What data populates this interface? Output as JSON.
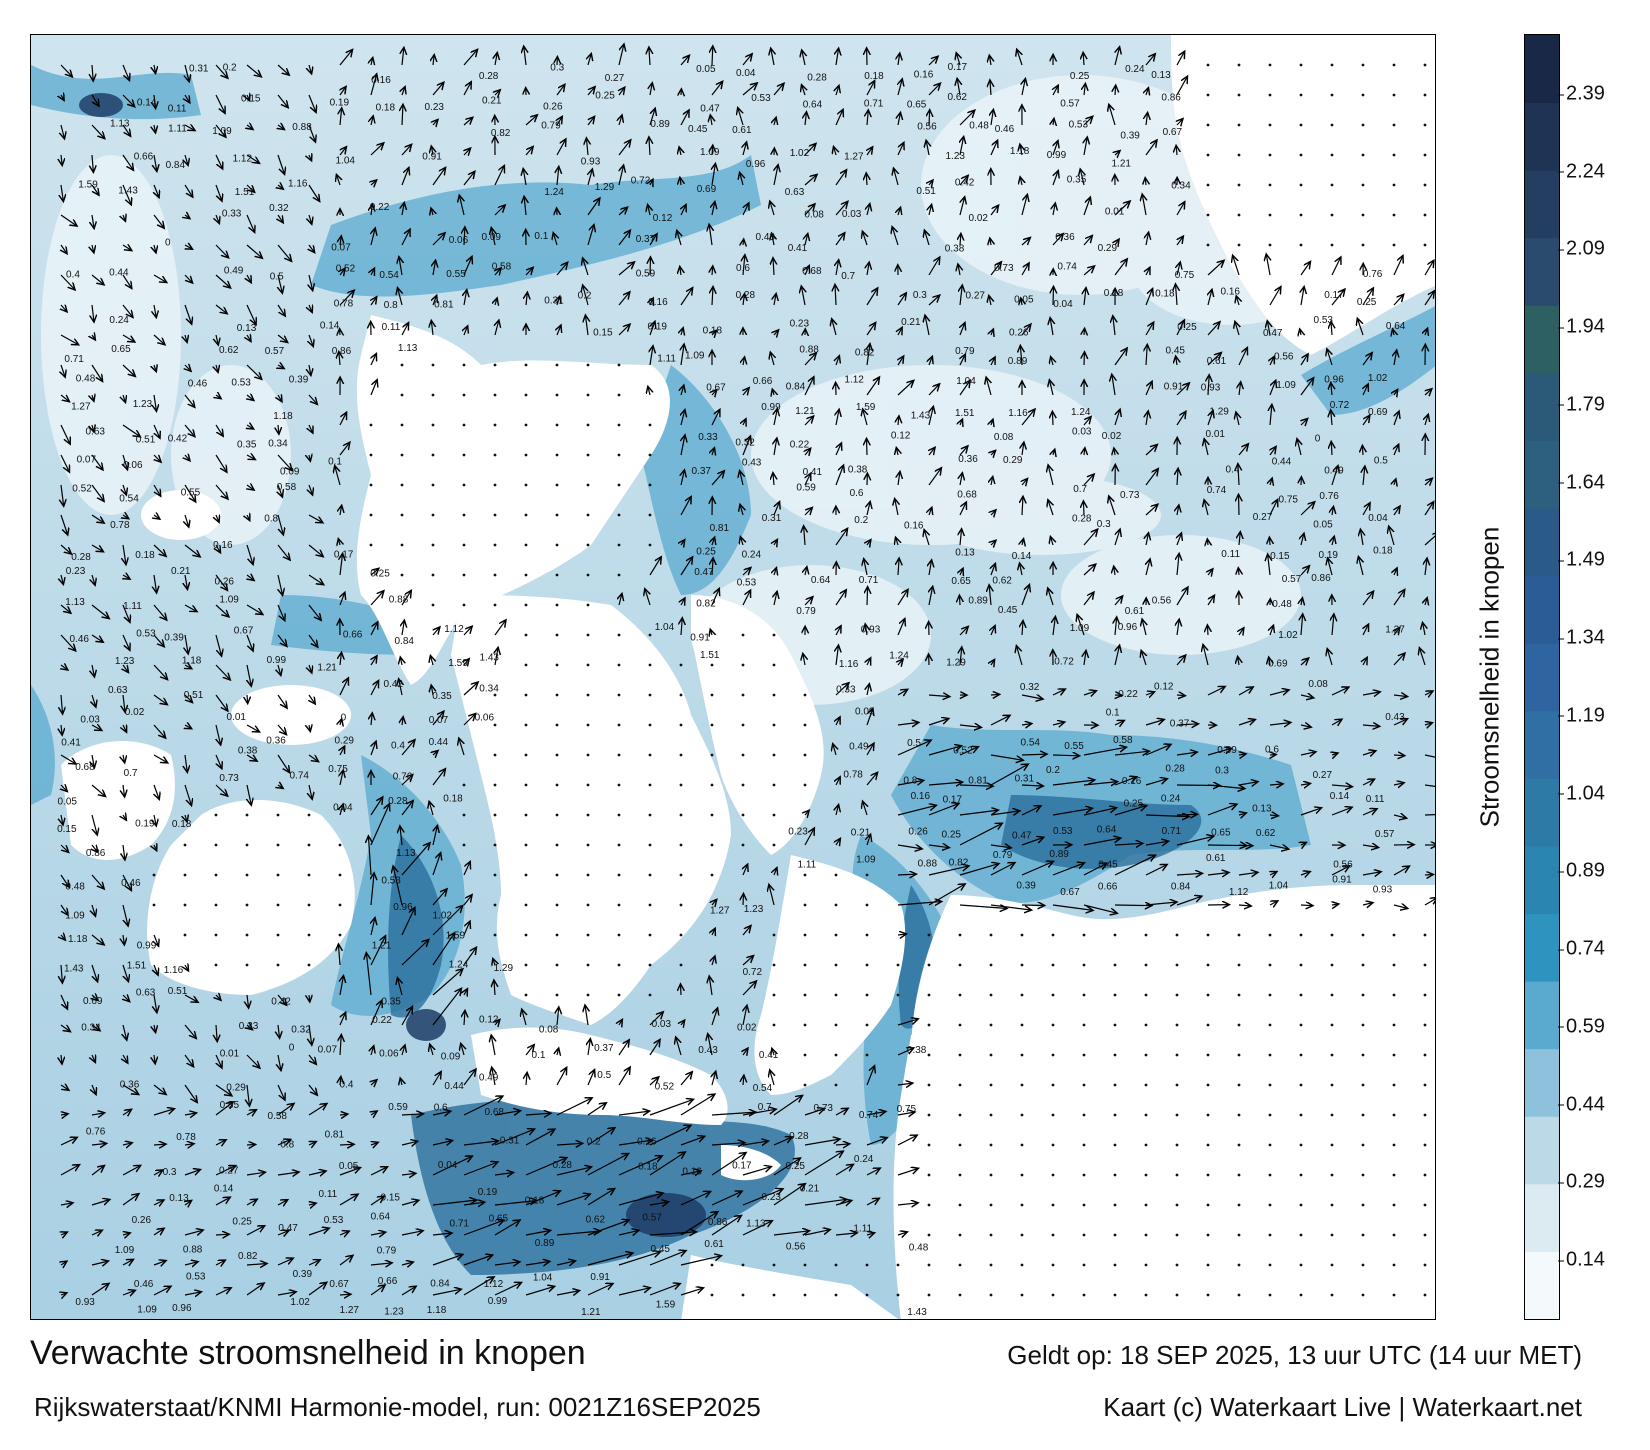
{
  "title": "Verwachte stroomsnelheid in knopen",
  "validity": "Geldt op: 18 SEP 2025, 13 uur UTC (14 uur MET)",
  "model": "Rijkswaterstaat/KNMI Harmonie-model, run: 0021Z16SEP2025",
  "credit": "Kaart (c) Waterkaart Live | Waterkaart.net",
  "colorbar": {
    "label": "Stroomsnelheid in knopen",
    "ticks": [
      "0.14",
      "0.29",
      "0.44",
      "0.59",
      "0.74",
      "0.89",
      "1.04",
      "1.19",
      "1.34",
      "1.49",
      "1.64",
      "1.79",
      "1.94",
      "2.09",
      "2.24",
      "2.39"
    ],
    "colors": [
      "#f4f9fb",
      "#dcebf2",
      "#bcd9e8",
      "#8ec2dc",
      "#5aa9cf",
      "#2f93bf",
      "#2a86b0",
      "#2d7aa6",
      "#2f6fa3",
      "#2e64a0",
      "#2b5c95",
      "#2a5a88",
      "#2d5f7e",
      "#2b5a78",
      "#2d6063",
      "#2a4b6e",
      "#243e62",
      "#1f3354",
      "#1a2847"
    ]
  },
  "speed_labels": [
    {
      "v": "0.31"
    },
    {
      "v": "0.2"
    },
    {
      "v": "0.16"
    },
    {
      "v": "0.28"
    },
    {
      "v": "0.3"
    },
    {
      "v": "0.27"
    },
    {
      "v": "0.05"
    },
    {
      "v": "0.04"
    },
    {
      "v": "0.28"
    },
    {
      "v": "0.18"
    },
    {
      "v": "0.16"
    },
    {
      "v": "0.17"
    },
    {
      "v": "0.25"
    },
    {
      "v": "0.24"
    },
    {
      "v": "0.13"
    },
    {
      "v": "0.14"
    },
    {
      "v": "0.11"
    },
    {
      "v": "0.15"
    },
    {
      "v": "0.19"
    },
    {
      "v": "0.18"
    },
    {
      "v": "0.23"
    },
    {
      "v": "0.21"
    },
    {
      "v": "0.26"
    },
    {
      "v": "0.25"
    },
    {
      "v": "0.47"
    },
    {
      "v": "0.53"
    },
    {
      "v": "0.64"
    },
    {
      "v": "0.71"
    },
    {
      "v": "0.65"
    },
    {
      "v": "0.62"
    },
    {
      "v": "0.57"
    },
    {
      "v": "0.86"
    },
    {
      "v": "1.13"
    },
    {
      "v": "1.11"
    },
    {
      "v": "1.09"
    },
    {
      "v": "0.88"
    },
    {
      "v": "0.82"
    },
    {
      "v": "0.79"
    },
    {
      "v": "0.89"
    },
    {
      "v": "0.45"
    },
    {
      "v": "0.61"
    },
    {
      "v": "0.56"
    },
    {
      "v": "0.48"
    },
    {
      "v": "0.46"
    },
    {
      "v": "0.53"
    },
    {
      "v": "0.39"
    },
    {
      "v": "0.67"
    },
    {
      "v": "0.66"
    },
    {
      "v": "0.84"
    },
    {
      "v": "1.12"
    },
    {
      "v": "1.04"
    },
    {
      "v": "0.91"
    },
    {
      "v": "0.93"
    },
    {
      "v": "1.09"
    },
    {
      "v": "0.96"
    },
    {
      "v": "1.02"
    },
    {
      "v": "1.27"
    },
    {
      "v": "1.23"
    },
    {
      "v": "1.18"
    },
    {
      "v": "0.99"
    },
    {
      "v": "1.21"
    },
    {
      "v": "1.59"
    },
    {
      "v": "1.43"
    },
    {
      "v": "1.51"
    },
    {
      "v": "1.16"
    },
    {
      "v": "1.24"
    },
    {
      "v": "1.29"
    },
    {
      "v": "0.72"
    },
    {
      "v": "0.69"
    },
    {
      "v": "0.63"
    },
    {
      "v": "0.51"
    },
    {
      "v": "0.42"
    },
    {
      "v": "0.35"
    },
    {
      "v": "0.34"
    },
    {
      "v": "0.33"
    },
    {
      "v": "0.32"
    },
    {
      "v": "0.22"
    },
    {
      "v": "0.12"
    },
    {
      "v": "0.08"
    },
    {
      "v": "0.03"
    },
    {
      "v": "0.02"
    },
    {
      "v": "0.01"
    },
    {
      "v": "0"
    },
    {
      "v": "0.07"
    },
    {
      "v": "0.06"
    },
    {
      "v": "0.09"
    },
    {
      "v": "0.1"
    },
    {
      "v": "0.37"
    },
    {
      "v": "0.43"
    },
    {
      "v": "0.41"
    },
    {
      "v": "0.38"
    },
    {
      "v": "0.36"
    },
    {
      "v": "0.29"
    },
    {
      "v": "0.4"
    },
    {
      "v": "0.44"
    },
    {
      "v": "0.49"
    },
    {
      "v": "0.5"
    },
    {
      "v": "0.52"
    },
    {
      "v": "0.54"
    },
    {
      "v": "0.55"
    },
    {
      "v": "0.58"
    },
    {
      "v": "0.59"
    },
    {
      "v": "0.6"
    },
    {
      "v": "0.68"
    },
    {
      "v": "0.7"
    },
    {
      "v": "0.73"
    },
    {
      "v": "0.74"
    },
    {
      "v": "0.75"
    },
    {
      "v": "0.76"
    },
    {
      "v": "0.78"
    },
    {
      "v": "0.8"
    },
    {
      "v": "0.81"
    }
  ]
}
